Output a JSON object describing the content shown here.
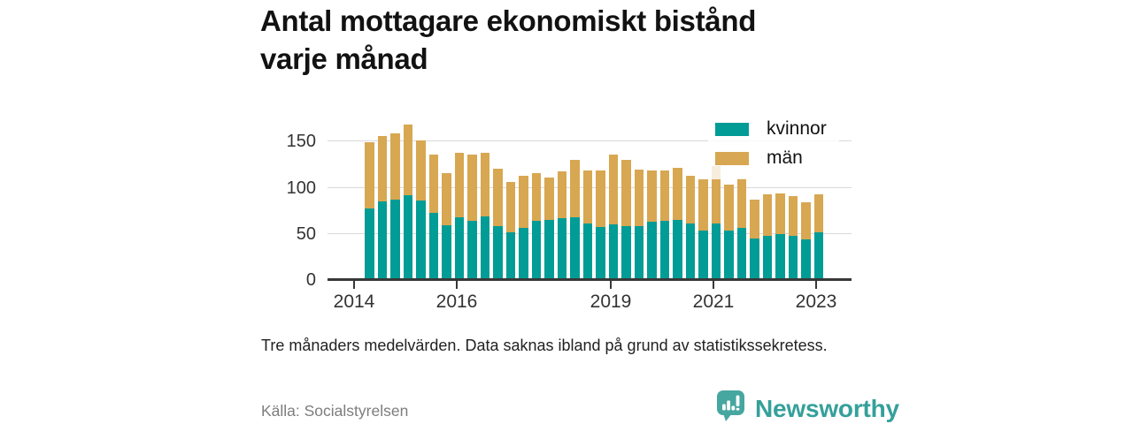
{
  "header": {
    "title_line1": "Antal mottagare ekonomiskt bistånd",
    "title_line2": "varje månad"
  },
  "chart_data": {
    "type": "bar",
    "stacked": true,
    "title": "Antal mottagare ekonomiskt bistånd varje månad",
    "categories": [
      "2014 kv2",
      "2014 kv3",
      "2014 kv4",
      "2015 kv1",
      "2015 kv2",
      "2015 kv3",
      "2015 kv4",
      "2016 kv1",
      "2016 kv2",
      "2016 kv3",
      "2016 kv4",
      "2017 kv1",
      "2017 kv2",
      "2017 kv3",
      "2017 kv4",
      "2018 kv1",
      "2018 kv2",
      "2018 kv3",
      "2018 kv4",
      "2019 kv1",
      "2019 kv2",
      "2019 kv3",
      "2019 kv4",
      "2020 kv1",
      "2020 kv2",
      "2020 kv3",
      "2020 kv4",
      "2021 kv1",
      "2021 kv2",
      "2021 kv3",
      "2021 kv4",
      "2022 kv1",
      "2022 kv2",
      "2022 kv3",
      "2022 kv4",
      "2023 kv1"
    ],
    "series": [
      {
        "name": "kvinnor",
        "color": "#009c95",
        "values": [
          78,
          85,
          87,
          92,
          86,
          73,
          59,
          68,
          64,
          69,
          58,
          52,
          56,
          64,
          65,
          67,
          68,
          61,
          57,
          60,
          58,
          58,
          63,
          64,
          65,
          61,
          54,
          61,
          54,
          56,
          45,
          48,
          50,
          48,
          44,
          52
        ]
      },
      {
        "name": "män",
        "color": "#d8a751",
        "values": [
          71,
          71,
          72,
          76,
          65,
          63,
          57,
          70,
          72,
          69,
          63,
          54,
          57,
          52,
          46,
          51,
          62,
          58,
          62,
          76,
          72,
          62,
          56,
          55,
          57,
          52,
          55,
          62,
          49,
          54,
          42,
          45,
          44,
          43,
          40,
          41
        ]
      }
    ],
    "xlabel": "",
    "ylabel": "",
    "ylim": [
      0,
      170
    ],
    "y_ticks": [
      0,
      50,
      100,
      150
    ],
    "x_ticks": [
      2014,
      2016,
      2019,
      2021,
      2023
    ],
    "grid": true,
    "legend_position": "top-right"
  },
  "legend": {
    "items": [
      {
        "label": "kvinnor",
        "color": "#009c95"
      },
      {
        "label": "män",
        "color": "#d8a751"
      }
    ]
  },
  "footnote": "Tre månaders medelvärden. Data saknas ibland på grund av statistikssekretess.",
  "source": "Källa: Socialstyrelsen",
  "logo": {
    "text": "Newsworthy",
    "color": "#35a09a"
  }
}
